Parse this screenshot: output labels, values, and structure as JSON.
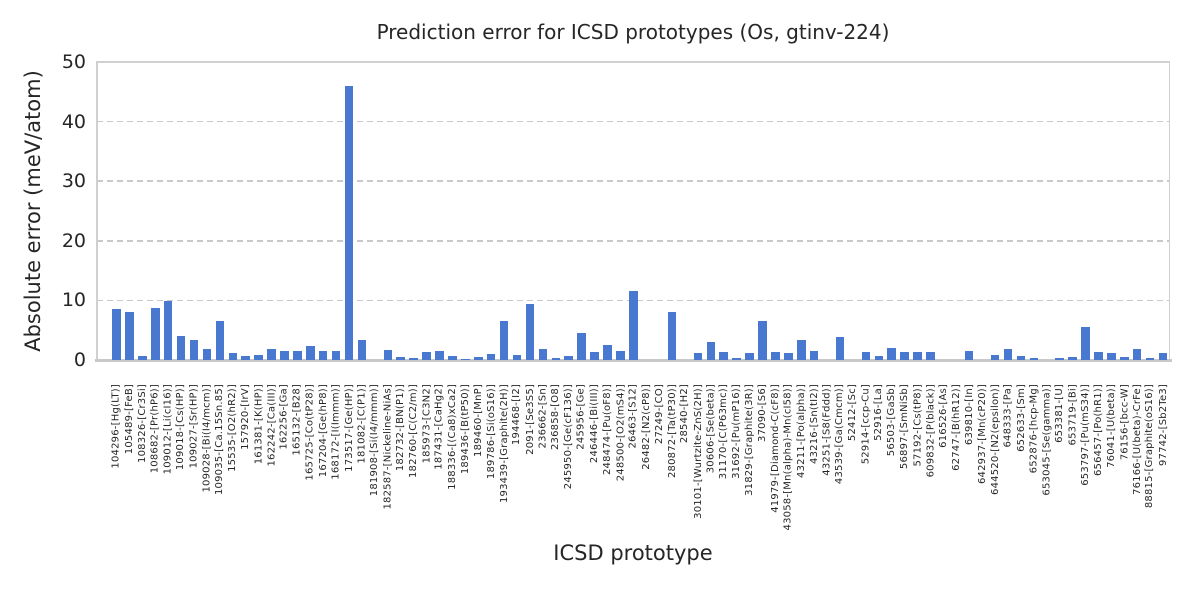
{
  "chart_data": {
    "type": "bar",
    "title": "Prediction error for ICSD prototypes (Os, gtinv-224)",
    "xlabel": "ICSD prototype",
    "ylabel": "Absolute error (meV/atom)",
    "ylim": [
      0,
      50
    ],
    "yticks": [
      0,
      10,
      20,
      30,
      40,
      50
    ],
    "grid": "horizontal-dashed",
    "legend": "none",
    "bar_color": "#4878d0",
    "grid_color": "#c9c9c9",
    "text_color": "#262626",
    "categories": [
      "104296-[Hg(LT)]",
      "105489-[FeB]",
      "108326-[Cr3Si]",
      "108682-[Pr(hP6)]",
      "109012-[Li(cI16)]",
      "109018-[Cs(HP)]",
      "109027-[Sr(HP)]",
      "109028-[Bi(I4/mcm)]",
      "109035-[Ca.15Sn.85]",
      "15535-[O2(hR2)]",
      "157920-[IrV]",
      "161381-[K(HP)]",
      "162242-[Ca(III)]",
      "162256-[Ga]",
      "165132-[B28]",
      "165725-[Co(tP28)]",
      "167204-[Ge(hP8)]",
      "168172-[I(Immm)]",
      "173517-[Ge(HP)]",
      "181082-[C(P1)]",
      "181908-[Si(I4/mmm)]",
      "182587-[Nickeline-NiAs]",
      "182732-[BN(P1)]",
      "182760-[C(C2/m)]",
      "185973-[C3N2]",
      "187431-[CaHg2]",
      "188336-[(Ca8)xCa2]",
      "189436-[B(tP50)]",
      "189460-[MnP]",
      "189786-[Si(oS16)]",
      "193439-[Graphite(2H)]",
      "194468-[I2]",
      "2091-[Se3S5]",
      "236662-[Sn]",
      "236858-[O8]",
      "245950-[Ge(cF136)]",
      "245956-[Ge]",
      "246446-[Bi(III)]",
      "248474-[Pu(oF8)]",
      "248500-[O2(mS4)]",
      "26463-[S12]",
      "26482-[N2(cP8)]",
      "27249-[CO]",
      "280872-[Ta(tP30)]",
      "28540-[H2]",
      "30101-[Wurtzite-ZnS(2H)]",
      "30606-[Se(beta)]",
      "31170-[C(P63mc)]",
      "31692-[Pu(mP16)]",
      "31829-[Graphite(3R)]",
      "37090-[S6]",
      "41979-[Diamond-C(cF8)]",
      "43058-[Mn(alpha)-Mn(cI58)]",
      "43211-[Po(alpha)]",
      "43216-[Sn(tI2)]",
      "43251-[S8(Fddd)]",
      "43539-[Ga(Cmcm)]",
      "52412-[Sc]",
      "52914-[ccp-Cu]",
      "52916-[La]",
      "56503-[GaSb]",
      "56897-[SmNiSb]",
      "57192-[Cs(tP8)]",
      "609832-[P(black)]",
      "616526-[As]",
      "62747-[B(hR12)]",
      "639810-[In]",
      "642937-[Mn(cP20)]",
      "644520-[N2(epsilon)]",
      "648333-[Pa]",
      "652633-[Sm]",
      "652876-[hcp-Mg]",
      "653045-[Se(gamma)]",
      "653381-[U]",
      "653719-[Bi]",
      "653797-[Pu(mS34)]",
      "656457-[Po(hR1)]",
      "76041-[U(beta)]",
      "76156-[bcc-W]",
      "76166-[U(beta)-CrFe]",
      "88815-[Graphite(oS16)]",
      "97742-[Sb2Te3]"
    ],
    "values": [
      8.6,
      8.1,
      0.6,
      8.7,
      9.9,
      4.0,
      3.3,
      1.9,
      6.6,
      1.1,
      0.6,
      0.9,
      1.9,
      1.5,
      1.5,
      2.3,
      1.5,
      1.5,
      46.0,
      3.3,
      0.0,
      1.7,
      0.45,
      0.35,
      1.4,
      1.6,
      0.7,
      0.2,
      0.55,
      1.0,
      6.6,
      0.85,
      9.4,
      1.9,
      0.35,
      0.65,
      4.5,
      1.35,
      2.6,
      1.45,
      11.6,
      0.0,
      0.0,
      8.0,
      0.0,
      1.1,
      3.0,
      1.3,
      0.3,
      1.1,
      6.5,
      1.35,
      1.2,
      3.3,
      1.55,
      0.0,
      3.9,
      0.0,
      1.3,
      0.65,
      2.0,
      1.35,
      1.4,
      1.35,
      0.0,
      0.0,
      1.6,
      0.0,
      0.9,
      1.8,
      0.65,
      0.4,
      0.0,
      0.4,
      0.5,
      5.5,
      1.35,
      1.1,
      0.55,
      1.8,
      0.4,
      1.1
    ]
  }
}
